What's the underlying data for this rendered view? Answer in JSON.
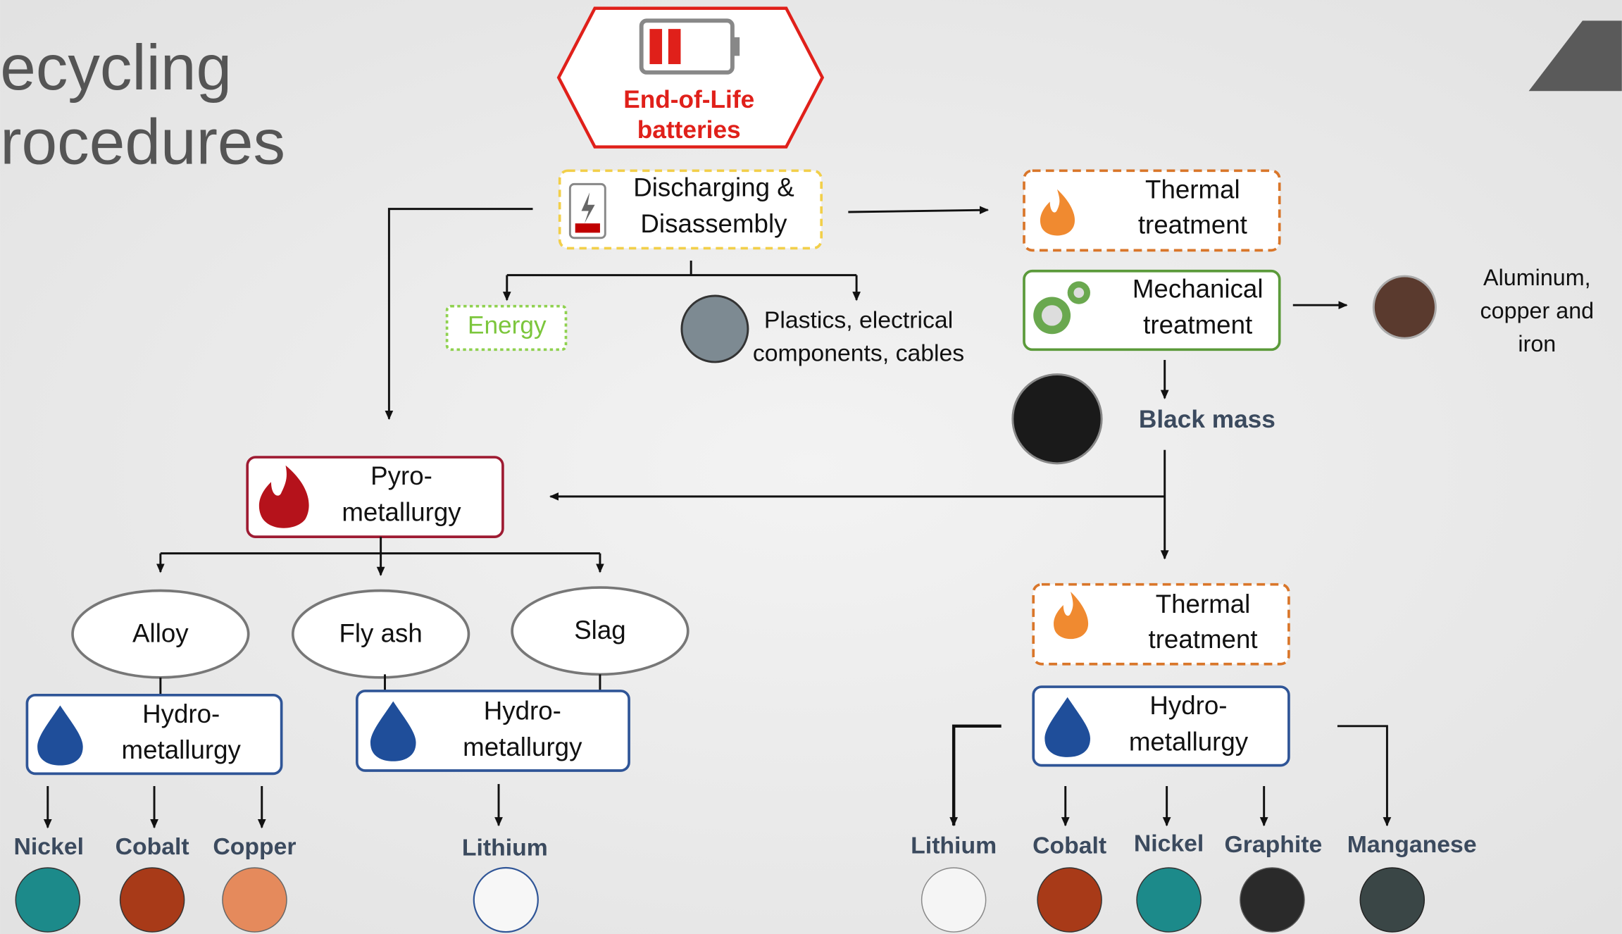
{
  "title": [
    "ecycling",
    "rocedures"
  ],
  "source": [
    "End-of-Life",
    "batteries"
  ],
  "steps": {
    "discharging": [
      "Discharging &",
      "Disassembly"
    ],
    "thermal_1": [
      "Thermal",
      "treatment"
    ],
    "mechanical": [
      "Mechanical",
      "treatment"
    ],
    "pyro": [
      "Pyro-",
      "metallurgy"
    ],
    "thermal_2": [
      "Thermal",
      "treatment"
    ],
    "hydro_alloy": [
      "Hydro-",
      "metallurgy"
    ],
    "hydro_ash_slag": [
      "Hydro-",
      "metallurgy"
    ],
    "hydro_black_mass": [
      "Hydro-",
      "metallurgy"
    ]
  },
  "outputs": {
    "energy": "Energy",
    "plastics": [
      "Plastics, electrical",
      "components, cables"
    ],
    "metals": [
      "Aluminum,",
      "copper and",
      "iron"
    ],
    "black_mass": "Black mass"
  },
  "pyro_products": [
    "Alloy",
    "Fly ash",
    "Slag"
  ],
  "materials_alloy": [
    "Nickel",
    "Cobalt",
    "Copper"
  ],
  "materials_ash_slag": [
    "Lithium"
  ],
  "materials_black_mass": [
    "Lithium",
    "Cobalt",
    "Nickel",
    "Graphite",
    "Manganese"
  ]
}
